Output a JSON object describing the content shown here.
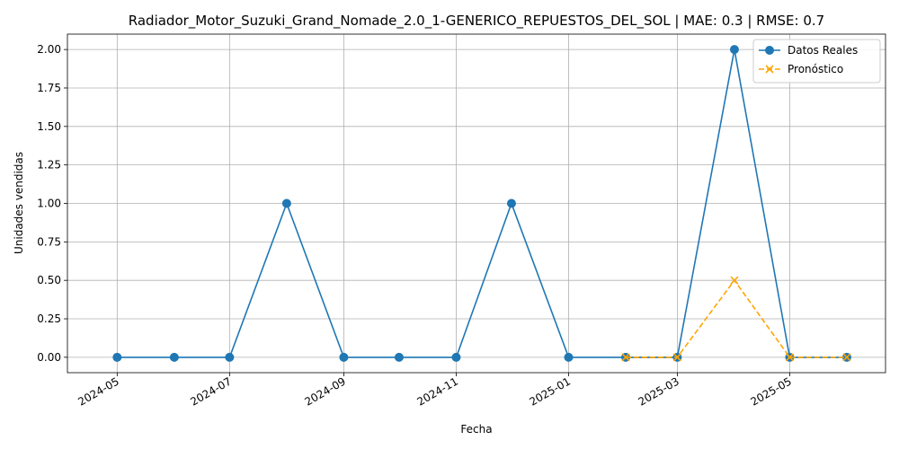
{
  "chart_data": {
    "type": "line",
    "title": "Radiador_Motor_Suzuki_Grand_Nomade_2.0_1-GENERICO_REPUESTOS_DEL_SOL | MAE: 0.3 | RMSE: 0.7",
    "xlabel": "Fecha",
    "ylabel": "Unidades vendidas",
    "xlim": [
      "2024-04-04",
      "2025-06-22"
    ],
    "ylim": [
      -0.1,
      2.1
    ],
    "grid": true,
    "legend_position": "top-right",
    "x_ticks": [
      "2024-05",
      "2024-07",
      "2024-09",
      "2024-11",
      "2025-01",
      "2025-03",
      "2025-05"
    ],
    "y_ticks": [
      "0.00",
      "0.25",
      "0.50",
      "0.75",
      "1.00",
      "1.25",
      "1.50",
      "1.75",
      "2.00"
    ],
    "series": [
      {
        "name": "Datos Reales",
        "color": "#1f77b4",
        "linestyle": "solid",
        "marker": "circle",
        "points": [
          {
            "x": "2024-05-01",
            "y": 0
          },
          {
            "x": "2024-06-01",
            "y": 0
          },
          {
            "x": "2024-07-01",
            "y": 0
          },
          {
            "x": "2024-08-01",
            "y": 1
          },
          {
            "x": "2024-09-01",
            "y": 0
          },
          {
            "x": "2024-10-01",
            "y": 0
          },
          {
            "x": "2024-11-01",
            "y": 0
          },
          {
            "x": "2024-12-01",
            "y": 1
          },
          {
            "x": "2025-01-01",
            "y": 0
          },
          {
            "x": "2025-02-01",
            "y": 0
          },
          {
            "x": "2025-03-01",
            "y": 0
          },
          {
            "x": "2025-04-01",
            "y": 2
          },
          {
            "x": "2025-05-01",
            "y": 0
          },
          {
            "x": "2025-06-01",
            "y": 0
          }
        ]
      },
      {
        "name": "Pronóstico",
        "color": "#ffa500",
        "linestyle": "dashed",
        "marker": "x",
        "points": [
          {
            "x": "2025-02-01",
            "y": 0
          },
          {
            "x": "2025-03-01",
            "y": 0
          },
          {
            "x": "2025-04-01",
            "y": 0.5
          },
          {
            "x": "2025-05-01",
            "y": 0
          },
          {
            "x": "2025-06-01",
            "y": 0
          }
        ]
      }
    ]
  }
}
